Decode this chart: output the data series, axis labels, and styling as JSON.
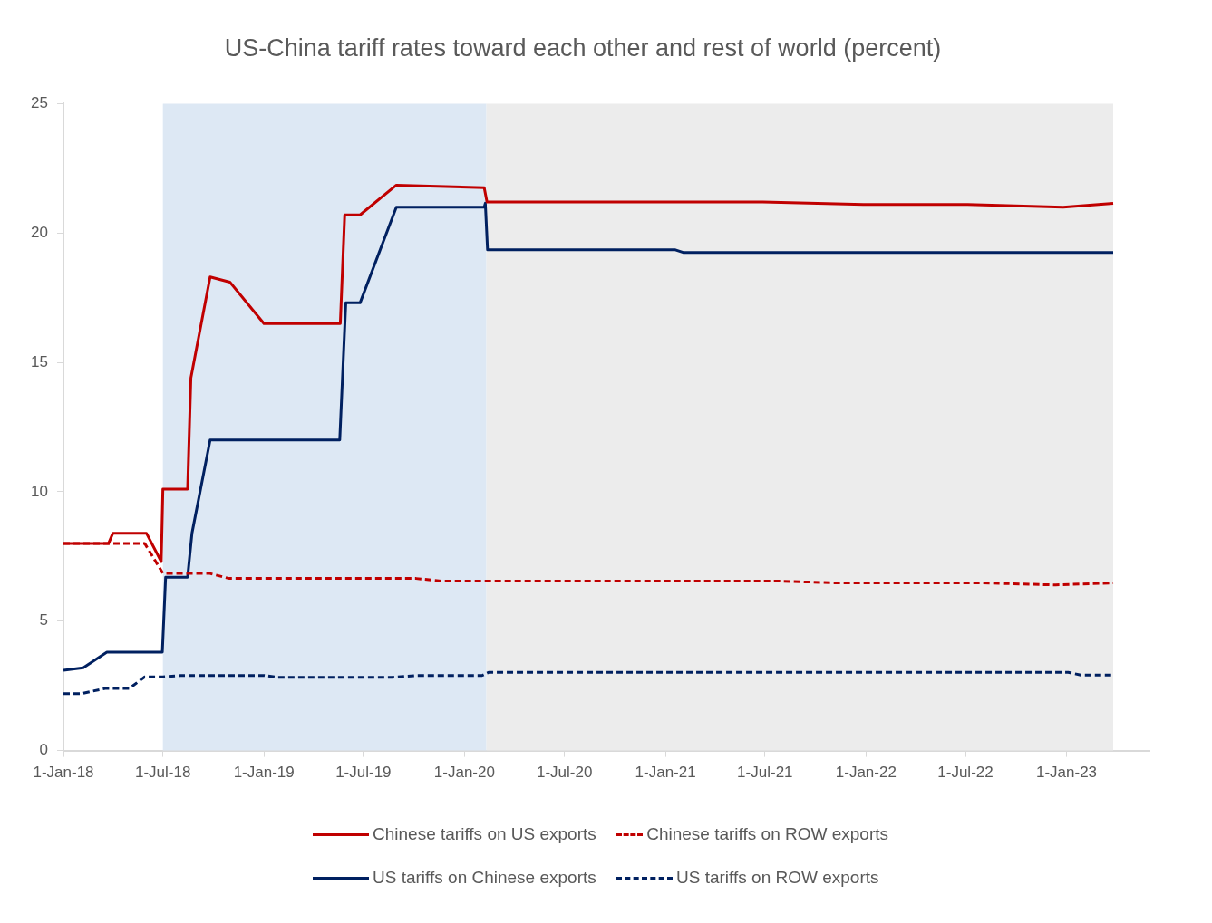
{
  "chart_data": {
    "type": "line",
    "title": "US-China tariff rates toward each other and rest of world (percent)",
    "xlim": [
      "2018-01-01",
      "2023-06-01"
    ],
    "xticks": [
      {
        "value": "2018-01-01",
        "label": "1-Jan-18"
      },
      {
        "value": "2018-07-01",
        "label": "1-Jul-18"
      },
      {
        "value": "2019-01-01",
        "label": "1-Jan-19"
      },
      {
        "value": "2019-07-01",
        "label": "1-Jul-19"
      },
      {
        "value": "2020-01-01",
        "label": "1-Jan-20"
      },
      {
        "value": "2020-07-01",
        "label": "1-Jul-20"
      },
      {
        "value": "2021-01-01",
        "label": "1-Jan-21"
      },
      {
        "value": "2021-07-01",
        "label": "1-Jul-21"
      },
      {
        "value": "2022-01-01",
        "label": "1-Jan-22"
      },
      {
        "value": "2022-07-01",
        "label": "1-Jul-22"
      },
      {
        "value": "2023-01-01",
        "label": "1-Jan-23"
      }
    ],
    "ylim": [
      0,
      25
    ],
    "yticks": [
      0,
      5,
      10,
      15,
      20,
      25
    ],
    "grid": false,
    "legend": "bottom",
    "marker": "none",
    "bands": [
      {
        "axis": "x",
        "from": "2018-07-01",
        "to": "2020-02-10",
        "color": "#dde8f4"
      },
      {
        "axis": "x",
        "from": "2020-02-10",
        "to": "2023-03-27",
        "color": "#ececec"
      }
    ],
    "series": [
      {
        "name": "Chinese tariffs on US exports",
        "color": "#c00000",
        "line_style": "solid",
        "x": [
          "2018-01-01",
          "2018-03-24",
          "2018-04-01",
          "2018-06-01",
          "2018-06-28",
          "2018-07-01",
          "2018-08-15",
          "2018-08-21",
          "2018-09-25",
          "2018-10-31",
          "2019-01-01",
          "2019-05-20",
          "2019-05-28",
          "2019-06-25",
          "2019-08-30",
          "2020-02-06",
          "2020-02-11",
          "2021-06-27",
          "2021-12-27",
          "2022-07-05",
          "2022-12-26",
          "2023-03-27"
        ],
        "values": [
          8.0,
          8.0,
          8.4,
          8.4,
          7.3,
          10.1,
          10.1,
          14.4,
          18.3,
          18.1,
          16.5,
          16.5,
          20.7,
          20.7,
          21.85,
          21.75,
          21.2,
          21.2,
          21.1,
          21.1,
          21.0,
          21.15
        ]
      },
      {
        "name": "Chinese tariffs on ROW exports",
        "color": "#c00000",
        "line_style": "dashed",
        "x": [
          "2018-01-01",
          "2018-05-29",
          "2018-07-01",
          "2018-09-23",
          "2018-10-30",
          "2019-10-05",
          "2019-11-21",
          "2021-07-27",
          "2021-11-03",
          "2022-07-28",
          "2022-12-12",
          "2023-03-27"
        ],
        "values": [
          8.0,
          8.0,
          6.85,
          6.85,
          6.65,
          6.65,
          6.55,
          6.55,
          6.48,
          6.48,
          6.4,
          6.48
        ]
      },
      {
        "name": "US tariffs on Chinese exports",
        "color": "#002060",
        "line_style": "solid",
        "x": [
          "2018-01-01",
          "2018-02-06",
          "2018-03-21",
          "2018-06-30",
          "2018-07-06",
          "2018-08-15",
          "2018-08-23",
          "2018-09-25",
          "2019-05-19",
          "2019-05-30",
          "2019-06-25",
          "2019-08-30",
          "2020-02-06",
          "2020-02-08",
          "2020-02-12",
          "2021-01-19",
          "2021-02-02",
          "2023-03-27"
        ],
        "values": [
          3.1,
          3.2,
          3.8,
          3.8,
          6.7,
          6.7,
          8.4,
          12.0,
          12.0,
          17.3,
          17.3,
          21.0,
          21.0,
          21.15,
          19.35,
          19.35,
          19.25,
          19.25
        ]
      },
      {
        "name": "US tariffs on ROW exports",
        "color": "#002060",
        "line_style": "dashed",
        "x": [
          "2018-01-01",
          "2018-02-02",
          "2018-03-18",
          "2018-05-01",
          "2018-05-29",
          "2018-07-01",
          "2018-08-02",
          "2019-01-02",
          "2019-01-25",
          "2019-08-22",
          "2019-10-05",
          "2020-02-02",
          "2020-02-14",
          "2023-01-04",
          "2023-01-27",
          "2023-03-27"
        ],
        "values": [
          2.2,
          2.2,
          2.4,
          2.4,
          2.85,
          2.85,
          2.9,
          2.9,
          2.83,
          2.83,
          2.9,
          2.9,
          3.02,
          3.02,
          2.92,
          2.92
        ]
      }
    ]
  }
}
